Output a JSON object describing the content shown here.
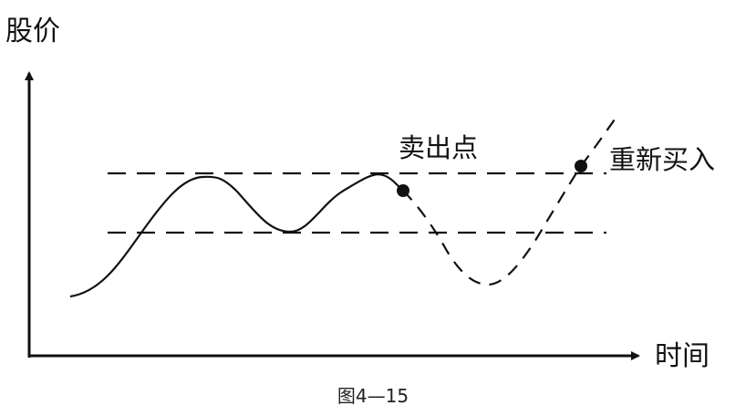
{
  "axes": {
    "y_label": "股价",
    "x_label": "时间"
  },
  "annotations": {
    "sell_point": "卖出点",
    "rebuy_point": "重新买入"
  },
  "caption": "图4—15",
  "colors": {
    "line": "#111111",
    "background": "#ffffff"
  },
  "line_styles": {
    "price_before_sell": "solid",
    "price_after_sell": "dashed",
    "levels": "dashed"
  }
}
